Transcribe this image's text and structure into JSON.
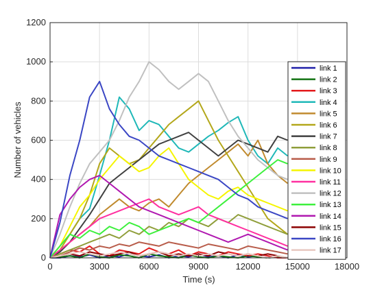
{
  "chart_data": {
    "type": "line",
    "title": "",
    "xlabel": "Time (s)",
    "ylabel": "Number of vehicles",
    "xlim": [
      0,
      18000
    ],
    "ylim": [
      0,
      1200
    ],
    "xticks": [
      "0",
      "3000",
      "6000",
      "9000",
      "12000",
      "15000",
      "18000"
    ],
    "yticks": [
      "0",
      "200",
      "400",
      "600",
      "800",
      "1000",
      "1200"
    ],
    "grid": true,
    "legend_position": "right",
    "x": [
      0,
      600,
      1200,
      1800,
      2400,
      3000,
      3600,
      4200,
      4800,
      5400,
      6000,
      6600,
      7200,
      7800,
      8400,
      9000,
      9600,
      10200,
      10800,
      11400,
      12000,
      12600,
      13200,
      13800,
      14400,
      15000
    ],
    "series": [
      {
        "name": "link 1",
        "color": "#1f1fa8",
        "values": [
          0,
          0,
          10,
          5,
          15,
          0,
          10,
          5,
          20,
          10,
          5,
          15,
          0,
          10,
          5,
          20,
          5,
          10,
          0,
          15,
          5,
          10,
          0,
          5,
          0,
          null
        ]
      },
      {
        "name": "link 2",
        "color": "#137313",
        "values": [
          0,
          5,
          10,
          0,
          20,
          5,
          0,
          15,
          10,
          0,
          20,
          10,
          5,
          0,
          15,
          5,
          0,
          10,
          5,
          0,
          10,
          5,
          0,
          5,
          0,
          null
        ]
      },
      {
        "name": "link 3",
        "color": "#e31a1c",
        "values": [
          0,
          20,
          40,
          30,
          60,
          20,
          10,
          40,
          30,
          20,
          50,
          30,
          20,
          40,
          10,
          30,
          20,
          10,
          30,
          20,
          10,
          20,
          10,
          0,
          0,
          null
        ]
      },
      {
        "name": "link 4",
        "color": "#1fb8b8",
        "values": [
          0,
          60,
          120,
          200,
          250,
          420,
          600,
          820,
          760,
          650,
          700,
          680,
          620,
          560,
          540,
          580,
          620,
          650,
          690,
          720,
          600,
          520,
          480,
          560,
          520,
          null
        ]
      },
      {
        "name": "link 5",
        "color": "#c08a2e",
        "values": [
          0,
          40,
          80,
          120,
          160,
          220,
          260,
          300,
          260,
          240,
          280,
          300,
          260,
          320,
          380,
          420,
          460,
          500,
          540,
          580,
          520,
          600,
          480,
          420,
          380,
          null
        ]
      },
      {
        "name": "link 6",
        "color": "#b3a71a",
        "values": [
          0,
          40,
          120,
          200,
          320,
          480,
          560,
          520,
          480,
          500,
          560,
          620,
          680,
          720,
          760,
          800,
          700,
          600,
          520,
          440,
          360,
          280,
          200,
          160,
          120,
          null
        ]
      },
      {
        "name": "link 7",
        "color": "#404040",
        "values": [
          0,
          30,
          80,
          150,
          220,
          300,
          380,
          420,
          460,
          500,
          540,
          580,
          600,
          620,
          640,
          600,
          560,
          520,
          560,
          600,
          580,
          560,
          540,
          620,
          600,
          null
        ]
      },
      {
        "name": "link 8",
        "color": "#8f9e3a",
        "values": [
          0,
          20,
          40,
          60,
          80,
          100,
          120,
          100,
          140,
          120,
          160,
          140,
          180,
          160,
          200,
          180,
          160,
          200,
          180,
          220,
          200,
          180,
          160,
          140,
          120,
          null
        ]
      },
      {
        "name": "link 9",
        "color": "#b85c4a",
        "values": [
          0,
          10,
          30,
          50,
          40,
          60,
          50,
          70,
          60,
          80,
          70,
          60,
          80,
          70,
          60,
          50,
          70,
          60,
          50,
          40,
          60,
          50,
          40,
          30,
          20,
          null
        ]
      },
      {
        "name": "link 10",
        "color": "#f5f500",
        "values": [
          0,
          60,
          160,
          260,
          320,
          400,
          460,
          520,
          480,
          440,
          460,
          520,
          560,
          480,
          400,
          360,
          320,
          300,
          340,
          360,
          320,
          300,
          280,
          260,
          240,
          null
        ]
      },
      {
        "name": "link 11",
        "color": "#ff2fa0",
        "values": [
          0,
          40,
          80,
          120,
          160,
          200,
          220,
          240,
          260,
          280,
          300,
          260,
          240,
          220,
          240,
          260,
          220,
          200,
          180,
          160,
          140,
          120,
          100,
          80,
          60,
          null
        ]
      },
      {
        "name": "link 12",
        "color": "#c0c0c0",
        "values": [
          0,
          120,
          260,
          380,
          480,
          540,
          600,
          700,
          820,
          900,
          1000,
          960,
          900,
          860,
          900,
          940,
          900,
          800,
          700,
          620,
          560,
          500,
          460,
          420,
          400,
          null
        ]
      },
      {
        "name": "link 13",
        "color": "#3cf03c",
        "values": [
          0,
          60,
          120,
          100,
          140,
          120,
          160,
          140,
          180,
          160,
          120,
          140,
          160,
          180,
          200,
          180,
          220,
          260,
          300,
          340,
          380,
          420,
          460,
          500,
          480,
          null
        ]
      },
      {
        "name": "link 14",
        "color": "#b018b0",
        "values": [
          0,
          220,
          300,
          360,
          400,
          420,
          380,
          340,
          300,
          260,
          240,
          220,
          200,
          180,
          160,
          140,
          120,
          100,
          80,
          100,
          120,
          100,
          80,
          60,
          40,
          null
        ]
      },
      {
        "name": "link 15",
        "color": "#8b0000",
        "values": [
          0,
          10,
          20,
          10,
          30,
          20,
          10,
          20,
          30,
          10,
          20,
          30,
          10,
          20,
          10,
          20,
          10,
          30,
          20,
          10,
          20,
          10,
          20,
          10,
          0,
          null
        ]
      },
      {
        "name": "link 16",
        "color": "#3a46c4",
        "values": [
          0,
          180,
          420,
          600,
          820,
          900,
          760,
          680,
          620,
          600,
          560,
          520,
          500,
          480,
          460,
          440,
          420,
          400,
          360,
          320,
          300,
          260,
          240,
          220,
          200,
          null
        ]
      },
      {
        "name": "link 17",
        "color": "#e8c8c0",
        "values": [
          0,
          10,
          20,
          30,
          20,
          10,
          20,
          30,
          20,
          10,
          20,
          30,
          20,
          10,
          20,
          10,
          20,
          10,
          20,
          10,
          20,
          10,
          0,
          10,
          0,
          null
        ]
      }
    ]
  }
}
